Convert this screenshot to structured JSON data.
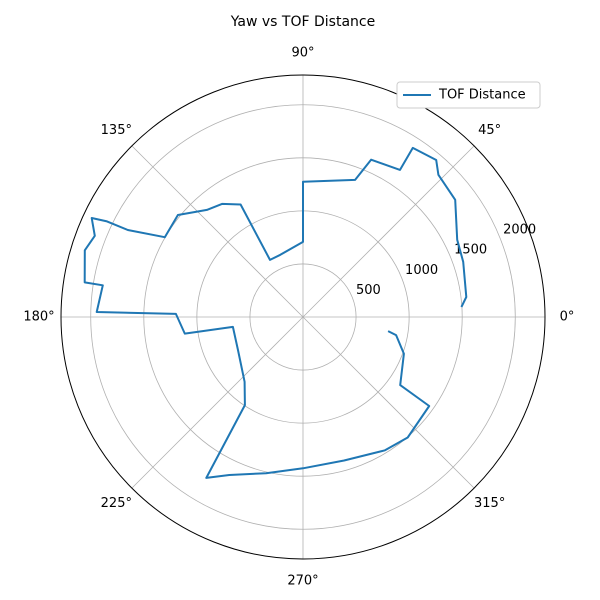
{
  "chart_data": {
    "type": "polar",
    "title": "Yaw vs TOF Distance",
    "series": [
      {
        "name": "TOF Distance",
        "color": "#1f77b4",
        "x": [
          3.6,
          7,
          19,
          26.6,
          37.6,
          46.4,
          49.7,
          57,
          56.6,
          66.6,
          69.2,
          90,
          90,
          110,
          120,
          119,
          125.6,
          131.9,
          140.8,
          150,
          153.6,
          154,
          154.9,
          158.7,
          163,
          171,
          171,
          178.6,
          178.6,
          188,
          188,
          207,
          228,
          236.6,
          239,
          245,
          256.7,
          270,
          286,
          301.6,
          311,
          324.8,
          325,
          340,
          349,
          350.6
        ],
        "values": [
          1495,
          1550,
          1596,
          1625,
          1810,
          1850,
          1940,
          1900,
          1660,
          1615,
          1382,
          1274,
          708,
          624,
          621,
          1212,
          1311,
          1356,
          1521,
          1504,
          1843,
          2055,
          2198,
          2105,
          2150,
          2082,
          1910,
          1944,
          1198,
          1125,
          667,
          687,
          822,
          994,
          1768,
          1642,
          1512,
          1425,
          1406,
          1474,
          1504,
          1455,
          1118,
          1012,
          894,
          813
        ]
      }
    ],
    "ylim": [
      0,
      2280
    ],
    "yticks": [
      500,
      1000,
      1500,
      2000
    ],
    "xticks": [
      {
        "value": 0,
        "label": "0°"
      },
      {
        "value": 45,
        "label": "45°"
      },
      {
        "value": 90,
        "label": "90°"
      },
      {
        "value": 135,
        "label": "135°"
      },
      {
        "value": 180,
        "label": "180°"
      },
      {
        "value": 225,
        "label": "225°"
      },
      {
        "value": 270,
        "label": "270°"
      },
      {
        "value": 315,
        "label": "315°"
      }
    ],
    "grid": true,
    "legend": "upper right"
  }
}
